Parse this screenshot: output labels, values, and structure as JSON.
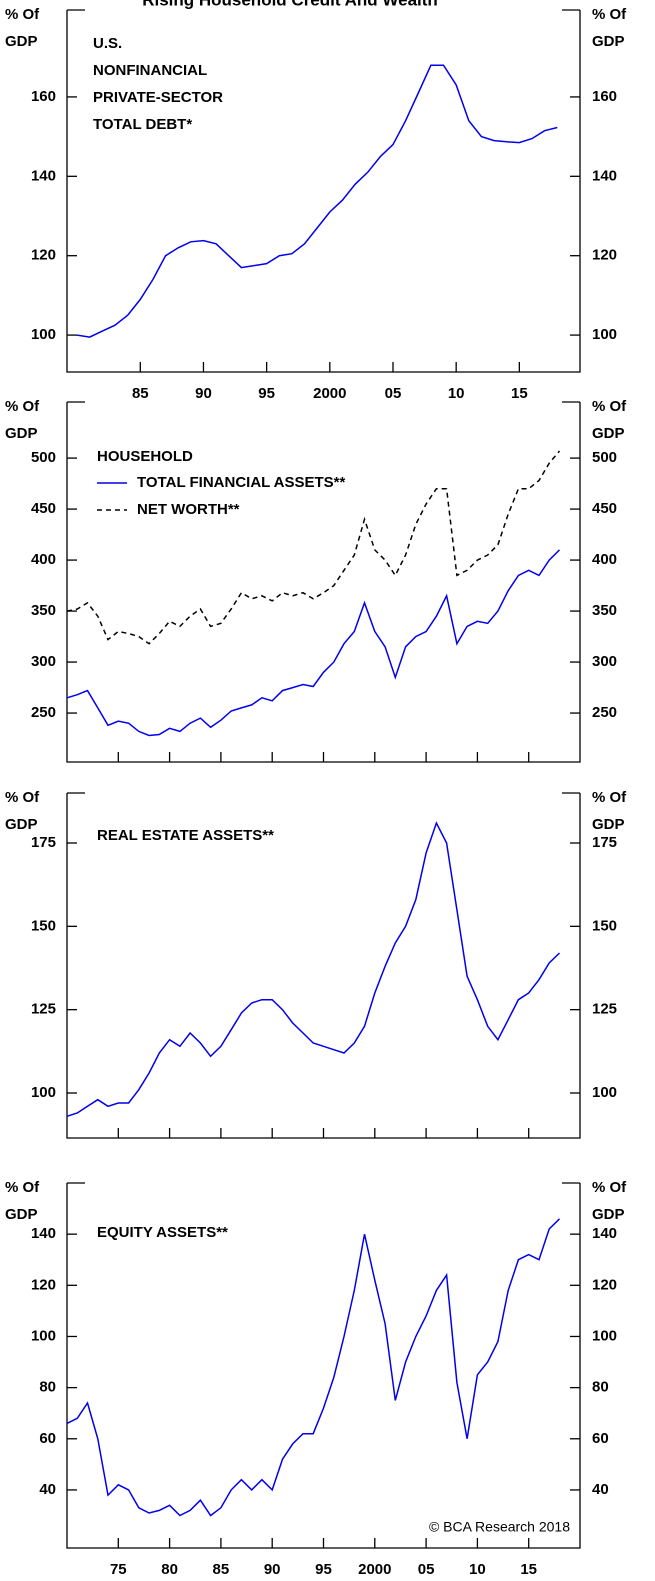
{
  "chart_data": [
    {
      "type": "line",
      "title": "Rising Household Credit And Wealth",
      "ylabel": [
        "% Of",
        "GDP"
      ],
      "annotation": [
        "U.S.",
        "NONFINANCIAL",
        "PRIVATE-SECTOR",
        "TOTAL DEBT*"
      ],
      "x": [
        1980,
        1981,
        1982,
        1983,
        1984,
        1985,
        1986,
        1987,
        1988,
        1989,
        1990,
        1991,
        1992,
        1993,
        1994,
        1995,
        1996,
        1997,
        1998,
        1999,
        2000,
        2001,
        2002,
        2003,
        2004,
        2005,
        2006,
        2007,
        2008,
        2009,
        2010,
        2011,
        2012,
        2013,
        2014,
        2015,
        2016,
        2017,
        2018
      ],
      "series": [
        {
          "name": "U.S. NONFINANCIAL PRIVATE-SECTOR TOTAL DEBT*",
          "color": "#0000ee",
          "values": [
            100,
            99.5,
            101,
            102.5,
            105,
            109,
            114,
            120,
            122,
            123.5,
            123.8,
            123,
            120,
            117,
            117.5,
            118,
            120,
            120.5,
            123,
            127,
            131,
            134,
            138,
            141,
            145,
            148,
            154,
            161,
            168,
            168,
            163,
            154,
            150,
            149,
            148.7,
            148.5,
            149.5,
            151.5,
            152.3
          ]
        }
      ],
      "xlim": [
        1979.2,
        2019.8
      ],
      "xticks": [
        {
          "value": 1985,
          "label": "85"
        },
        {
          "value": 1990,
          "label": "90"
        },
        {
          "value": 1995,
          "label": "95"
        },
        2000,
        {
          "value": 2005,
          "label": "05"
        },
        {
          "value": 2010,
          "label": "10"
        },
        {
          "value": 2015,
          "label": "15"
        }
      ],
      "ylim": [
        90.7,
        181.9
      ],
      "yticks": [
        100,
        120,
        140,
        160
      ]
    },
    {
      "type": "line",
      "ylabel": [
        "% Of",
        "GDP"
      ],
      "annotation": [
        "HOUSEHOLD"
      ],
      "x": [
        1970,
        1971,
        1972,
        1973,
        1974,
        1975,
        1976,
        1977,
        1978,
        1979,
        1980,
        1981,
        1982,
        1983,
        1984,
        1985,
        1986,
        1987,
        1988,
        1989,
        1990,
        1991,
        1992,
        1993,
        1994,
        1995,
        1996,
        1997,
        1998,
        1999,
        2000,
        2001,
        2002,
        2003,
        2004,
        2005,
        2006,
        2007,
        2008,
        2009,
        2010,
        2011,
        2012,
        2013,
        2014,
        2015,
        2016,
        2017,
        2018
      ],
      "series": [
        {
          "name": "TOTAL FINANCIAL ASSETS**",
          "color": "#0000ee",
          "style": "solid",
          "values": [
            265,
            268,
            272,
            255,
            238,
            242,
            240,
            232,
            228,
            229,
            235,
            232,
            240,
            245,
            236,
            243,
            252,
            255,
            258,
            265,
            262,
            272,
            275,
            278,
            276,
            290,
            300,
            318,
            330,
            358,
            330,
            315,
            285,
            315,
            325,
            330,
            345,
            365,
            318,
            335,
            340,
            338,
            350,
            370,
            385,
            390,
            385,
            400,
            410
          ]
        },
        {
          "name": "NET WORTH**",
          "color": "#000000",
          "style": "dashed",
          "values": [
            350,
            352,
            358,
            345,
            322,
            330,
            328,
            325,
            318,
            328,
            340,
            335,
            345,
            352,
            335,
            338,
            352,
            368,
            362,
            365,
            360,
            368,
            365,
            368,
            362,
            368,
            375,
            390,
            405,
            440,
            410,
            400,
            385,
            405,
            435,
            455,
            470,
            470,
            385,
            390,
            400,
            405,
            415,
            445,
            470,
            470,
            478,
            495,
            507
          ]
        }
      ],
      "xlim": [
        1970,
        2020
      ],
      "xticks": [
        1975,
        1980,
        1985,
        1990,
        1995,
        2000,
        2005,
        2010,
        2015
      ],
      "ylim": [
        202,
        555
      ],
      "yticks": [
        250,
        300,
        350,
        400,
        450,
        500
      ]
    },
    {
      "type": "line",
      "ylabel": [
        "% Of",
        "GDP"
      ],
      "annotation": [
        "REAL ESTATE ASSETS**"
      ],
      "x": [
        1970,
        1971,
        1972,
        1973,
        1974,
        1975,
        1976,
        1977,
        1978,
        1979,
        1980,
        1981,
        1982,
        1983,
        1984,
        1985,
        1986,
        1987,
        1988,
        1989,
        1990,
        1991,
        1992,
        1993,
        1994,
        1995,
        1996,
        1997,
        1998,
        1999,
        2000,
        2001,
        2002,
        2003,
        2004,
        2005,
        2006,
        2007,
        2008,
        2009,
        2010,
        2011,
        2012,
        2013,
        2014,
        2015,
        2016,
        2017,
        2018
      ],
      "series": [
        {
          "name": "REAL ESTATE ASSETS**",
          "color": "#0000ee",
          "values": [
            93,
            94,
            96,
            98,
            96,
            97,
            97,
            101,
            106,
            112,
            116,
            114,
            118,
            115,
            111,
            114,
            119,
            124,
            127,
            128,
            128,
            125,
            121,
            118,
            115,
            114,
            113,
            112,
            115,
            120,
            130,
            138,
            145,
            150,
            158,
            172,
            181,
            175,
            155,
            135,
            128,
            120,
            116,
            122,
            128,
            130,
            134,
            139,
            142
          ]
        }
      ],
      "xlim": [
        1970,
        2020
      ],
      "xticks": [
        1975,
        1980,
        1985,
        1990,
        1995,
        2000,
        2005,
        2010,
        2015
      ],
      "ylim": [
        86.5,
        190
      ],
      "yticks": [
        100,
        125,
        150,
        175
      ]
    },
    {
      "type": "line",
      "ylabel": [
        "% Of",
        "GDP"
      ],
      "annotation": [
        "EQUITY ASSETS**"
      ],
      "source": "© BCA Research 2018",
      "x": [
        1970,
        1971,
        1972,
        1973,
        1974,
        1975,
        1976,
        1977,
        1978,
        1979,
        1980,
        1981,
        1982,
        1983,
        1984,
        1985,
        1986,
        1987,
        1988,
        1989,
        1990,
        1991,
        1992,
        1993,
        1994,
        1995,
        1996,
        1997,
        1998,
        1999,
        2000,
        2001,
        2002,
        2003,
        2004,
        2005,
        2006,
        2007,
        2008,
        2009,
        2010,
        2011,
        2012,
        2013,
        2014,
        2015,
        2016,
        2017,
        2018
      ],
      "series": [
        {
          "name": "EQUITY ASSETS**",
          "color": "#0000ee",
          "values": [
            66,
            68,
            74,
            60,
            38,
            42,
            40,
            33,
            31,
            32,
            34,
            30,
            32,
            36,
            30,
            33,
            40,
            44,
            40,
            44,
            40,
            52,
            58,
            62,
            62,
            72,
            84,
            100,
            118,
            140,
            122,
            105,
            75,
            90,
            100,
            108,
            118,
            124,
            82,
            60,
            85,
            90,
            98,
            118,
            130,
            132,
            130,
            142,
            146
          ]
        }
      ],
      "xlim": [
        1970,
        2020
      ],
      "xticks": [
        {
          "value": 1975,
          "label": "75"
        },
        {
          "value": 1980,
          "label": "80"
        },
        {
          "value": 1985,
          "label": "85"
        },
        {
          "value": 1990,
          "label": "90"
        },
        {
          "value": 1995,
          "label": "95"
        },
        2000,
        {
          "value": 2005,
          "label": "05"
        },
        {
          "value": 2010,
          "label": "10"
        },
        {
          "value": 2015,
          "label": "15"
        }
      ],
      "ylim": [
        17.3,
        160
      ],
      "yticks": [
        40,
        60,
        80,
        100,
        120,
        140
      ]
    }
  ]
}
